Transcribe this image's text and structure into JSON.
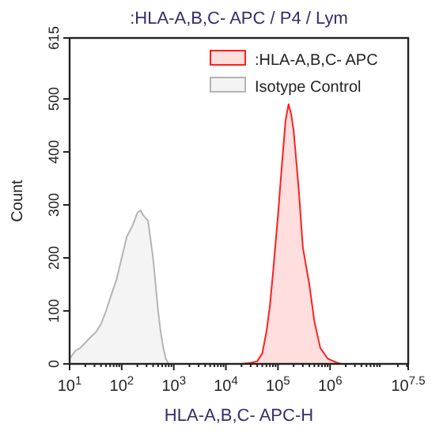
{
  "chart_data": {
    "type": "area",
    "title": ":HLA-A,B,C- APC / P4 / Lym",
    "xlabel": "HLA-A,B,C- APC-H",
    "ylabel": "Count",
    "log": "x",
    "xlim": [
      10,
      31622777
    ],
    "xticks": [
      {
        "value": 10,
        "label": "10$^{1}$"
      },
      {
        "value": 100,
        "label": "10$^{2}$"
      },
      {
        "value": 1000,
        "label": "10$^{3}$"
      },
      {
        "value": 10000,
        "label": "10$^{4}$"
      },
      {
        "value": 100000,
        "label": "10$^{5}$"
      },
      {
        "value": 1000000,
        "label": "10$^{6}$"
      },
      {
        "value": 31622777,
        "label": "10$^{7.5}$"
      }
    ],
    "ylim": [
      0,
      615
    ],
    "yticks": [
      0,
      100,
      200,
      300,
      400,
      500,
      615
    ],
    "legend": "top right",
    "series": [
      {
        "name": ":HLA-A,B,C- APC",
        "color": "#ff2020",
        "x": [
          20000,
          30000,
          40000,
          50000,
          60000,
          70000,
          80000,
          100000,
          120000,
          140000,
          160000,
          180000,
          200000,
          250000,
          300000,
          400000,
          500000,
          650000,
          900000,
          1300000,
          1600000
        ],
        "values": [
          0,
          2,
          5,
          20,
          60,
          110,
          170,
          280,
          380,
          460,
          490,
          470,
          440,
          330,
          220,
          150,
          80,
          30,
          10,
          3,
          0
        ]
      },
      {
        "name": "Isotype Control",
        "color": "#b4b4b4",
        "x": [
          10,
          13,
          16,
          20,
          25,
          32,
          40,
          50,
          63,
          80,
          100,
          125,
          160,
          200,
          230,
          260,
          320,
          400,
          500,
          560,
          630,
          700,
          800
        ],
        "values": [
          10,
          25,
          30,
          40,
          50,
          60,
          75,
          100,
          130,
          160,
          200,
          240,
          260,
          285,
          290,
          280,
          270,
          200,
          100,
          60,
          30,
          10,
          0
        ]
      }
    ]
  }
}
